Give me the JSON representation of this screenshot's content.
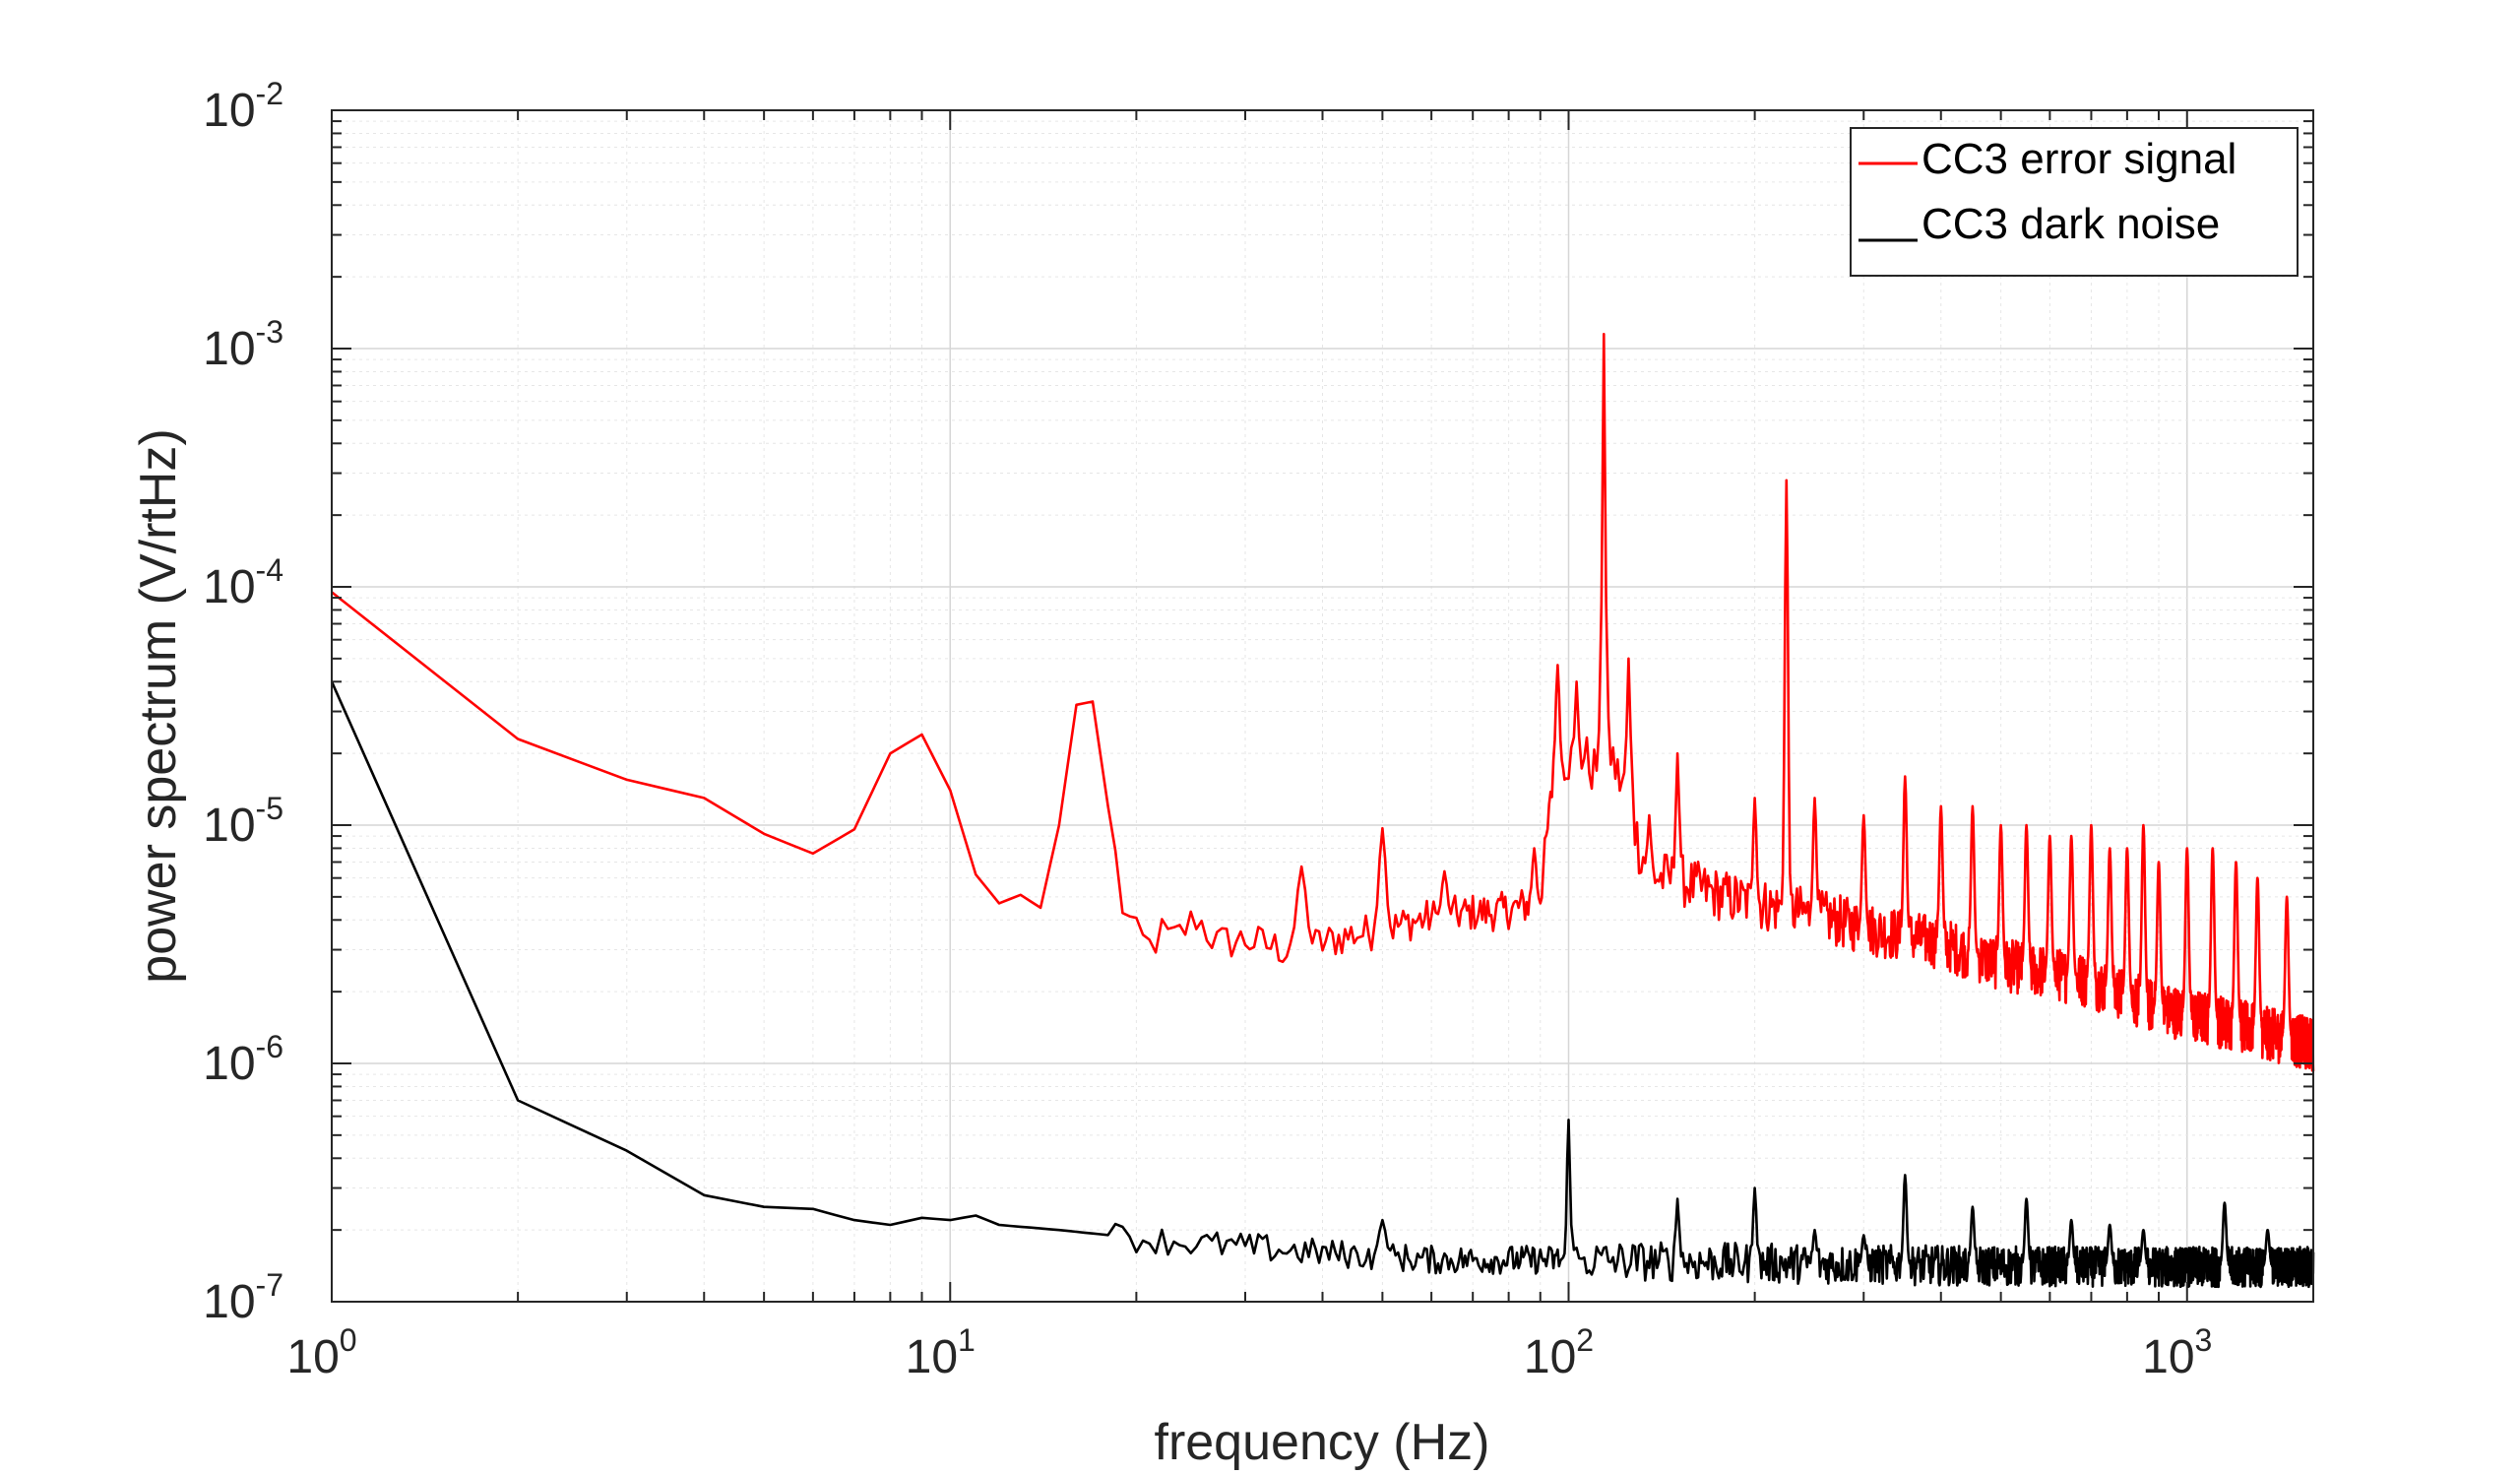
{
  "chart_data": {
    "type": "line",
    "title": "",
    "xlabel": "frequency (Hz)",
    "ylabel": "power spectrum (V/rtHz)",
    "xscale": "log",
    "yscale": "log",
    "xlim": [
      1,
      1600
    ],
    "ylim": [
      1e-07,
      0.01
    ],
    "grid": true,
    "minor_grid": true,
    "legend_position": "top-right",
    "x_ticks": [
      {
        "base": "10",
        "exp": "0"
      },
      {
        "base": "10",
        "exp": "1"
      },
      {
        "base": "10",
        "exp": "2"
      },
      {
        "base": "10",
        "exp": "3"
      }
    ],
    "y_ticks": [
      {
        "base": "10",
        "exp": "-7"
      },
      {
        "base": "10",
        "exp": "-6"
      },
      {
        "base": "10",
        "exp": "-5"
      },
      {
        "base": "10",
        "exp": "-4"
      },
      {
        "base": "10",
        "exp": "-3"
      },
      {
        "base": "10",
        "exp": "-2"
      }
    ],
    "series": [
      {
        "name": "CC3 error signal",
        "color": "#ff0000",
        "baseline_points": [
          [
            1,
            9.5e-05
          ],
          [
            2,
            2.3e-05
          ],
          [
            3,
            1.55e-05
          ],
          [
            4,
            1.3e-05
          ],
          [
            5,
            9.2e-06
          ],
          [
            6,
            7.6e-06
          ],
          [
            7,
            9.6e-06
          ],
          [
            8,
            2e-05
          ],
          [
            9,
            2.4e-05
          ],
          [
            10,
            1.4e-05
          ],
          [
            11,
            6.2e-06
          ],
          [
            12,
            4.7e-06
          ],
          [
            13,
            5.1e-06
          ],
          [
            14,
            4.5e-06
          ],
          [
            15,
            1e-05
          ],
          [
            16,
            3.2e-05
          ],
          [
            17,
            3.3e-05
          ],
          [
            18,
            1.2e-05
          ],
          [
            19,
            4.6e-06
          ],
          [
            20,
            3.4e-06
          ],
          [
            21,
            3.1e-06
          ],
          [
            22,
            3.5e-06
          ],
          [
            23,
            3.3e-06
          ],
          [
            25,
            4.1e-06
          ],
          [
            27,
            3.2e-06
          ],
          [
            30,
            3.3e-06
          ],
          [
            35,
            3e-06
          ],
          [
            40,
            3.2e-06
          ],
          [
            45,
            3.5e-06
          ],
          [
            50,
            3.6e-06
          ],
          [
            55,
            3.9e-06
          ],
          [
            60,
            4.1e-06
          ],
          [
            65,
            4.2e-06
          ],
          [
            70,
            4.3e-06
          ],
          [
            75,
            4.3e-06
          ],
          [
            80,
            4.4e-06
          ],
          [
            85,
            4.6e-06
          ],
          [
            90,
            5e-06
          ],
          [
            95,
            1.8e-05
          ],
          [
            100,
            1.8e-05
          ],
          [
            105,
            2e-05
          ],
          [
            110,
            1.7e-05
          ],
          [
            115,
            2.4e-05
          ],
          [
            120,
            1.6e-05
          ],
          [
            125,
            1.4e-05
          ],
          [
            130,
            8e-06
          ],
          [
            135,
            6.5e-06
          ],
          [
            140,
            6e-06
          ],
          [
            150,
            6e-06
          ],
          [
            160,
            5.5e-06
          ],
          [
            180,
            5e-06
          ],
          [
            200,
            4.7e-06
          ],
          [
            250,
            4.2e-06
          ],
          [
            300,
            3.7e-06
          ],
          [
            400,
            3.2e-06
          ],
          [
            500,
            2.6e-06
          ],
          [
            600,
            2.4e-06
          ],
          [
            700,
            2.2e-06
          ],
          [
            800,
            1.9e-06
          ],
          [
            900,
            1.7e-06
          ],
          [
            1000,
            1.6e-06
          ],
          [
            1200,
            1.45e-06
          ],
          [
            1400,
            1.3e-06
          ],
          [
            1600,
            1.2e-06
          ]
        ],
        "peaks": [
          [
            37,
            6.7e-06
          ],
          [
            50,
            9.7e-06
          ],
          [
            63,
            6.4e-06
          ],
          [
            88,
            8e-06
          ],
          [
            96,
            4.7e-05
          ],
          [
            103,
            4e-05
          ],
          [
            114,
            0.00115
          ],
          [
            125,
            5e-05
          ],
          [
            135,
            1.1e-05
          ],
          [
            150,
            2e-05
          ],
          [
            200,
            1.3e-05
          ],
          [
            225,
            0.00028
          ],
          [
            250,
            1.3e-05
          ],
          [
            300,
            1.1e-05
          ],
          [
            350,
            1.6e-05
          ],
          [
            400,
            1.2e-05
          ],
          [
            450,
            1.2e-05
          ],
          [
            500,
            1e-05
          ],
          [
            550,
            1e-05
          ],
          [
            600,
            9e-06
          ],
          [
            650,
            9e-06
          ],
          [
            700,
            1e-05
          ],
          [
            750,
            8e-06
          ],
          [
            800,
            8e-06
          ],
          [
            850,
            1e-05
          ],
          [
            900,
            7e-06
          ],
          [
            1000,
            8e-06
          ],
          [
            1100,
            8e-06
          ],
          [
            1200,
            7e-06
          ],
          [
            1300,
            6e-06
          ],
          [
            1450,
            5e-06
          ]
        ],
        "noise_amplitude": 0.08
      },
      {
        "name": "CC3 dark noise",
        "color": "#000000",
        "baseline_points": [
          [
            1,
            4e-05
          ],
          [
            2,
            7e-07
          ],
          [
            3,
            4.3e-07
          ],
          [
            4,
            2.8e-07
          ],
          [
            5,
            2.5e-07
          ],
          [
            6,
            2.45e-07
          ],
          [
            7,
            2.2e-07
          ],
          [
            8,
            2.1e-07
          ],
          [
            9,
            2.25e-07
          ],
          [
            10,
            2.2e-07
          ],
          [
            11,
            2.3e-07
          ],
          [
            12,
            2.1e-07
          ],
          [
            15,
            2e-07
          ],
          [
            20,
            1.85e-07
          ],
          [
            25,
            1.75e-07
          ],
          [
            30,
            1.7e-07
          ],
          [
            40,
            1.6e-07
          ],
          [
            50,
            1.55e-07
          ],
          [
            60,
            1.5e-07
          ],
          [
            80,
            1.5e-07
          ],
          [
            100,
            1.5e-07
          ],
          [
            200,
            1.45e-07
          ],
          [
            400,
            1.42e-07
          ],
          [
            800,
            1.4e-07
          ],
          [
            1600,
            1.4e-07
          ]
        ],
        "peaks": [
          [
            50,
            2.2e-07
          ],
          [
            100,
            5.8e-07
          ],
          [
            150,
            2.7e-07
          ],
          [
            200,
            3e-07
          ],
          [
            250,
            2e-07
          ],
          [
            300,
            1.9e-07
          ],
          [
            350,
            3.4e-07
          ],
          [
            450,
            2.5e-07
          ],
          [
            550,
            2.7e-07
          ],
          [
            650,
            2.2e-07
          ],
          [
            750,
            2.1e-07
          ],
          [
            850,
            2e-07
          ],
          [
            1150,
            2.6e-07
          ],
          [
            1350,
            2e-07
          ]
        ],
        "noise_amplitude": 0.06
      }
    ]
  }
}
